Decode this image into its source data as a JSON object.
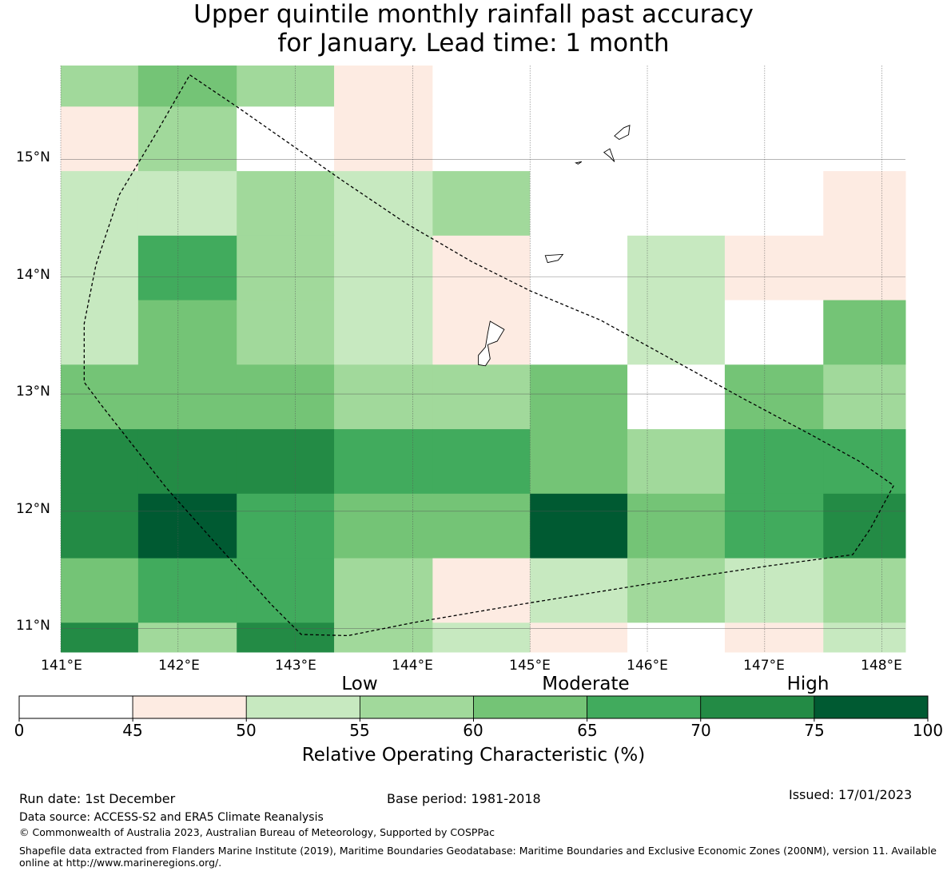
{
  "title_line1": "Upper quintile monthly rainfall past accuracy",
  "title_line2": "for January. Lead time: 1 month",
  "map": {
    "lat_labels": [
      "15°N",
      "14°N",
      "13°N",
      "12°N",
      "11°N"
    ],
    "lon_labels": [
      "141°E",
      "142°E",
      "143°E",
      "144°E",
      "145°E",
      "146°E",
      "147°E",
      "148°E"
    ],
    "extent": {
      "lon_min": 141.0,
      "lon_max": 148.2,
      "lat_min": 10.8,
      "lat_max": 15.8
    },
    "grid_rows_lat": [
      [
        15.45,
        15.8
      ],
      [
        14.9,
        15.45
      ],
      [
        14.35,
        14.9
      ],
      [
        13.8,
        14.35
      ],
      [
        13.25,
        13.8
      ],
      [
        12.7,
        13.25
      ],
      [
        12.15,
        12.7
      ],
      [
        11.6,
        12.15
      ],
      [
        11.05,
        11.6
      ],
      [
        10.8,
        11.05
      ]
    ],
    "grid_cols_lon": [
      [
        141.0,
        141.66
      ],
      [
        141.66,
        142.5
      ],
      [
        142.5,
        143.33
      ],
      [
        143.33,
        144.17
      ],
      [
        144.17,
        145.0
      ],
      [
        145.0,
        145.83
      ],
      [
        145.83,
        146.66
      ],
      [
        146.66,
        147.5
      ],
      [
        147.5,
        148.2
      ]
    ],
    "roc_values_pct": [
      [
        57,
        62,
        57,
        47,
        null,
        null,
        null,
        null,
        null
      ],
      [
        47,
        57,
        40,
        47,
        null,
        null,
        null,
        null,
        null
      ],
      [
        52,
        52,
        57,
        52,
        57,
        null,
        null,
        null,
        47
      ],
      [
        52,
        67,
        57,
        52,
        47,
        null,
        52,
        47,
        47
      ],
      [
        52,
        62,
        57,
        52,
        47,
        null,
        52,
        40,
        62
      ],
      [
        62,
        62,
        62,
        57,
        57,
        62,
        40,
        62,
        57
      ],
      [
        72,
        72,
        72,
        67,
        67,
        62,
        57,
        67,
        67
      ],
      [
        72,
        77,
        67,
        62,
        62,
        77,
        62,
        67,
        72
      ],
      [
        62,
        67,
        67,
        57,
        47,
        52,
        57,
        52,
        57
      ],
      [
        72,
        57,
        72,
        57,
        52,
        47,
        40,
        47,
        52
      ]
    ],
    "boundary_outline": [
      [
        142.1,
        15.72
      ],
      [
        142.5,
        15.45
      ],
      [
        143.0,
        15.1
      ],
      [
        143.4,
        14.82
      ],
      [
        143.95,
        14.45
      ],
      [
        144.5,
        14.13
      ],
      [
        145.0,
        13.88
      ],
      [
        145.6,
        13.63
      ],
      [
        146.2,
        13.3
      ],
      [
        146.8,
        12.97
      ],
      [
        147.4,
        12.65
      ],
      [
        147.8,
        12.43
      ],
      [
        148.1,
        12.22
      ],
      [
        147.9,
        11.85
      ],
      [
        147.75,
        11.63
      ],
      [
        147.0,
        11.53
      ],
      [
        146.0,
        11.38
      ],
      [
        145.0,
        11.22
      ],
      [
        144.0,
        11.05
      ],
      [
        143.45,
        10.94
      ],
      [
        143.05,
        10.95
      ],
      [
        142.8,
        11.2
      ],
      [
        142.3,
        11.75
      ],
      [
        141.9,
        12.2
      ],
      [
        141.35,
        12.9
      ],
      [
        141.2,
        13.1
      ],
      [
        141.2,
        13.6
      ],
      [
        141.3,
        14.1
      ],
      [
        141.5,
        14.7
      ],
      [
        141.8,
        15.2
      ],
      [
        142.1,
        15.72
      ]
    ],
    "islands": [
      [
        [
          144.66,
          13.62
        ],
        [
          144.78,
          13.55
        ],
        [
          144.72,
          13.45
        ],
        [
          144.64,
          13.42
        ],
        [
          144.66,
          13.3
        ],
        [
          144.62,
          13.24
        ],
        [
          144.56,
          13.25
        ],
        [
          144.56,
          13.33
        ],
        [
          144.62,
          13.4
        ],
        [
          144.64,
          13.52
        ],
        [
          144.66,
          13.62
        ]
      ],
      [
        [
          145.13,
          14.18
        ],
        [
          145.28,
          14.19
        ],
        [
          145.24,
          14.14
        ],
        [
          145.15,
          14.12
        ],
        [
          145.13,
          14.18
        ]
      ],
      [
        [
          145.63,
          15.06
        ],
        [
          145.68,
          15.02
        ],
        [
          145.72,
          14.98
        ],
        [
          145.68,
          15.09
        ],
        [
          145.63,
          15.06
        ]
      ],
      [
        [
          145.72,
          15.2
        ],
        [
          145.8,
          15.27
        ],
        [
          145.85,
          15.29
        ],
        [
          145.84,
          15.21
        ],
        [
          145.76,
          15.17
        ],
        [
          145.72,
          15.2
        ]
      ],
      [
        [
          145.39,
          14.97
        ],
        [
          145.44,
          14.98
        ],
        [
          145.41,
          14.96
        ],
        [
          145.39,
          14.97
        ]
      ]
    ]
  },
  "colorbar": {
    "bins": [
      {
        "from": 0,
        "to": 45,
        "color": "#ffffff"
      },
      {
        "from": 45,
        "to": 50,
        "color": "#fdebe2"
      },
      {
        "from": 50,
        "to": 55,
        "color": "#c7e9c0"
      },
      {
        "from": 55,
        "to": 60,
        "color": "#a1d99b"
      },
      {
        "from": 60,
        "to": 65,
        "color": "#74c476"
      },
      {
        "from": 65,
        "to": 70,
        "color": "#41ab5d"
      },
      {
        "from": 70,
        "to": 75,
        "color": "#238b45"
      },
      {
        "from": 75,
        "to": 100,
        "color": "#005a32"
      }
    ],
    "ticks": [
      "0",
      "45",
      "50",
      "55",
      "60",
      "65",
      "70",
      "75",
      "100"
    ],
    "band_labels": [
      "Low",
      "Moderate",
      "High"
    ],
    "title": "Relative Operating Characteristic (%)"
  },
  "footer": {
    "run_date": "Run date: 1st December",
    "base_period": "Base period: 1981-2018",
    "issued": "Issued: 17/01/2023",
    "data_source": "Data source: ACCESS-S2 and ERA5 Climate Reanalysis",
    "copyright": "© Commonwealth of Australia 2023, Australian Bureau of Meteorology, Supported by COSPPac",
    "shapefile": "Shapefile data extracted from Flanders Marine Institute (2019), Maritime Boundaries Geodatabase: Maritime Boundaries and Exclusive Economic Zones (200NM), version 11. Available online at http://www.marineregions.org/."
  }
}
